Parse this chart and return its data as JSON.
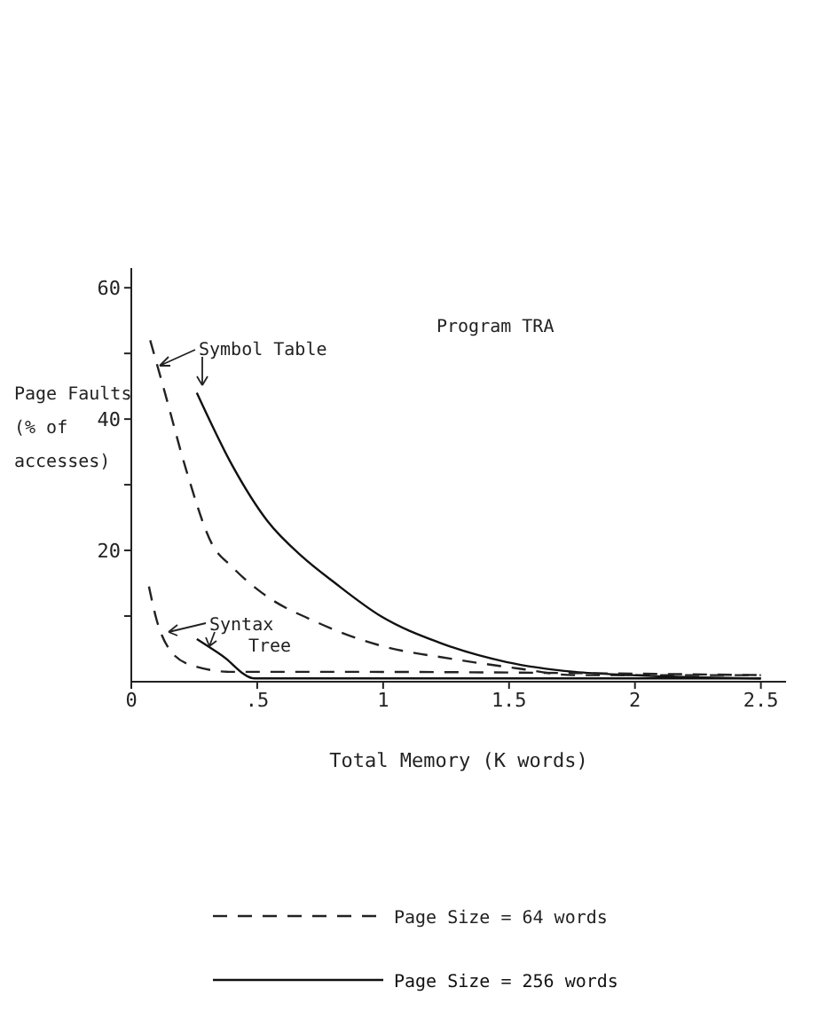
{
  "chart_data": {
    "type": "line",
    "title": "Program TRA",
    "xlabel": "Total Memory (K words)",
    "ylabel": "Page Faults (% of accesses)",
    "xlim": [
      0,
      2.6
    ],
    "ylim": [
      0,
      63
    ],
    "xticks": [
      0,
      {
        "value": 0.5,
        "label": ".5"
      },
      1,
      1.5,
      2,
      2.5
    ],
    "yticks": [
      {
        "value": 10,
        "label": null
      },
      20,
      {
        "value": 30,
        "label": null
      },
      40,
      {
        "value": 50,
        "label": null
      },
      60
    ],
    "grid": false,
    "legend": "bottom",
    "marker": "none",
    "annotations": [
      "Symbol Table",
      "Syntax Tree"
    ],
    "series": [
      {
        "name": "Page Size = 64 words",
        "color": "#222222",
        "line_style": "dashed",
        "x": [
          0.075,
          0.13,
          0.22,
          0.32,
          0.4,
          0.52,
          0.74,
          0.99,
          1.27,
          1.54,
          1.76,
          2.5
        ],
        "values": [
          52,
          44.5,
          32,
          21,
          17.5,
          13.5,
          9,
          5.5,
          3.5,
          2,
          1,
          1
        ]
      },
      {
        "name": "Page Size = 256 words",
        "color": "#111111",
        "line_style": "solid",
        "x": [
          0.26,
          0.4,
          0.54,
          0.68,
          0.81,
          0.99,
          1.22,
          1.49,
          1.76,
          1.99,
          2.5
        ],
        "values": [
          44,
          33,
          24.5,
          19,
          15,
          10,
          6,
          3,
          1.5,
          1,
          0.5
        ]
      },
      {
        "color": "#222222",
        "line_style": "dashed",
        "x": [
          0.07,
          0.1,
          0.15,
          0.24,
          0.4,
          0.86,
          2.5
        ],
        "values": [
          14.5,
          9.5,
          5,
          2.5,
          1.5,
          1.5,
          1
        ]
      },
      {
        "color": "#111111",
        "line_style": "solid",
        "x": [
          0.26,
          0.36,
          0.49,
          0.86,
          2.5
        ],
        "values": [
          6.5,
          4,
          0.5,
          0.5,
          0.5
        ]
      }
    ]
  }
}
